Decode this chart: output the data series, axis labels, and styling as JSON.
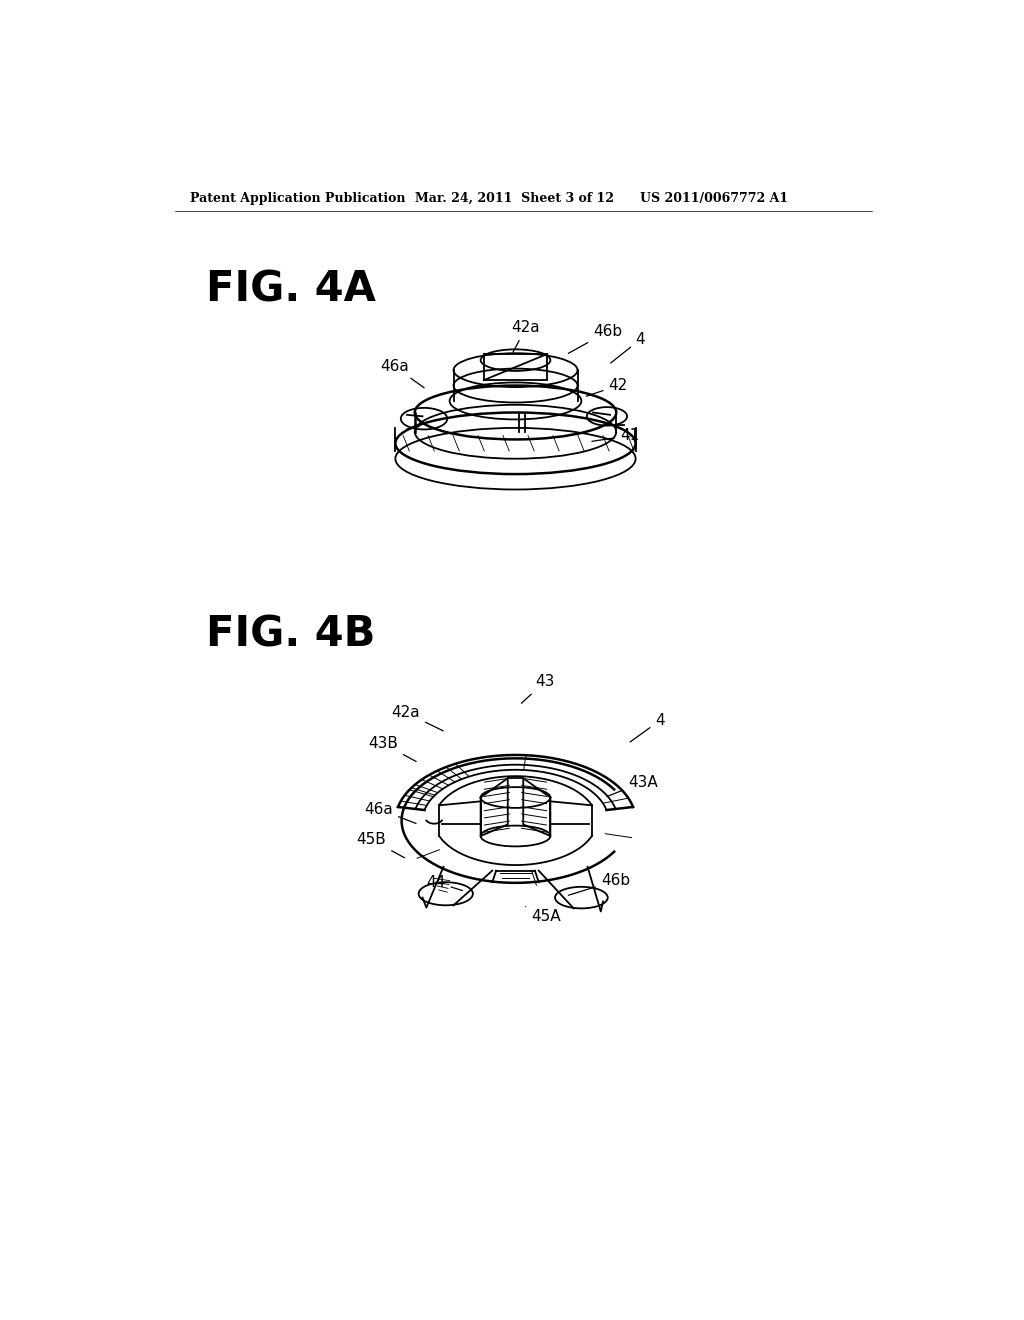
{
  "bg_color": "#ffffff",
  "header_text": "Patent Application Publication",
  "header_date": "Mar. 24, 2011  Sheet 3 of 12",
  "header_patent": "US 2011/0067772 A1",
  "fig4a_label": "FIG. 4A",
  "fig4b_label": "FIG. 4B",
  "fig_label_fontsize": 30,
  "annotation_fontsize": 11,
  "header_fontsize": 9
}
